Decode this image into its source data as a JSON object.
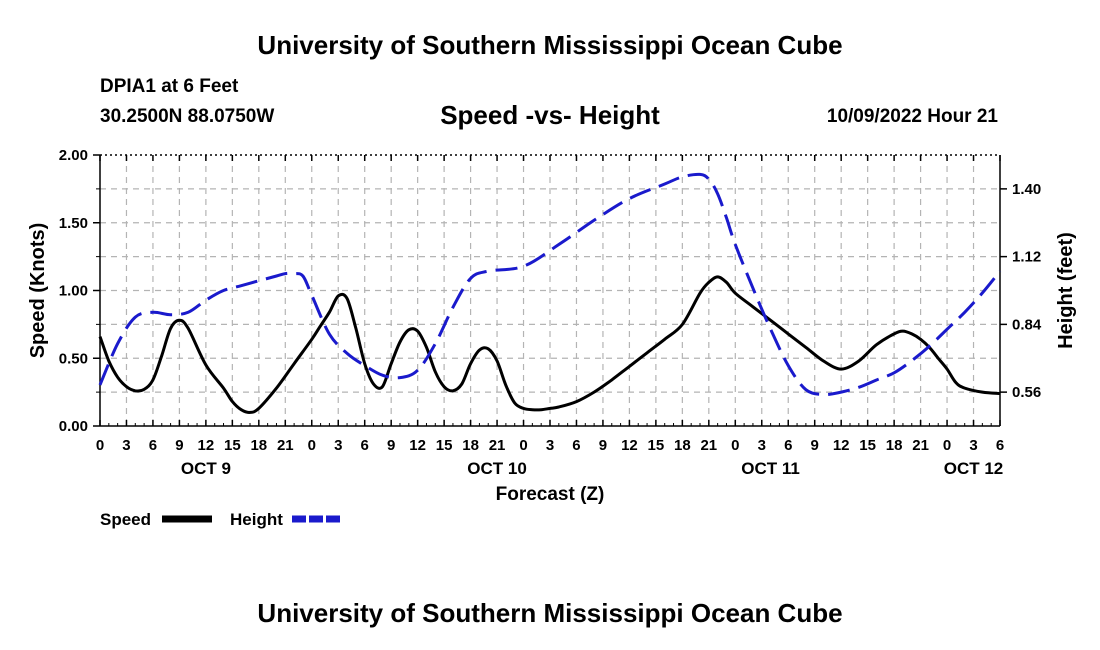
{
  "header": {
    "title": "University of Southern Mississippi Ocean Cube",
    "station": "DPIA1 at 6 Feet",
    "coordinates": "30.2500N  88.0750W",
    "chart_title": "Speed -vs- Height",
    "datetime": "10/09/2022 Hour 21"
  },
  "footer": {
    "title": "University of Southern Mississippi Ocean Cube"
  },
  "colors": {
    "speed": "#000000",
    "height": "#1a1acc",
    "grid": "#b4b4b4"
  },
  "chart_data": {
    "type": "line",
    "title": "Speed -vs- Height",
    "xlabel": "Forecast (Z)",
    "ylabel": "Speed (Knots)",
    "y2label": "Height (feet)",
    "x_range": [
      0,
      102
    ],
    "ylim": [
      0,
      2
    ],
    "y2lim": [
      0.42,
      1.54
    ],
    "yticks": [
      0,
      0.5,
      1.0,
      1.5,
      2.0
    ],
    "ytick_labels": [
      "0.00",
      "0.50",
      "1.00",
      "1.50",
      "2.00"
    ],
    "y2ticks": [
      0.56,
      0.84,
      1.12,
      1.4
    ],
    "y2tick_labels": [
      "0.56",
      "0.84",
      "1.12",
      "1.40"
    ],
    "x_hours": [
      0,
      3,
      6,
      9,
      12,
      15,
      18,
      21,
      24,
      27,
      30,
      33,
      36,
      39,
      42,
      45,
      48,
      51,
      54,
      57,
      60,
      63,
      66,
      69,
      72,
      75,
      78,
      81,
      84,
      87,
      90,
      93,
      96,
      99,
      102
    ],
    "x_tick_labels": [
      "0",
      "3",
      "6",
      "9",
      "12",
      "15",
      "18",
      "21",
      "0",
      "3",
      "6",
      "9",
      "12",
      "15",
      "18",
      "21",
      "0",
      "3",
      "6",
      "9",
      "12",
      "15",
      "18",
      "21",
      "0",
      "3",
      "6",
      "9",
      "12",
      "15",
      "18",
      "21",
      "0",
      "3",
      "6"
    ],
    "date_labels": [
      {
        "label": "OCT 9",
        "hour": 12
      },
      {
        "label": "OCT 10",
        "hour": 45
      },
      {
        "label": "OCT 11",
        "hour": 76
      },
      {
        "label": "OCT 12",
        "hour": 99
      }
    ],
    "grid": true,
    "legend": {
      "position": "bottom-left",
      "entries": [
        "Speed",
        "Height"
      ]
    },
    "series": [
      {
        "name": "Speed",
        "axis": "left",
        "style": "solid",
        "x": [
          0,
          1,
          2,
          3,
          4,
          5,
          6,
          7,
          8,
          9,
          10,
          12,
          14,
          15,
          16,
          17,
          18,
          20,
          22,
          24,
          25,
          26,
          27,
          28,
          29,
          30,
          31,
          32,
          33,
          34,
          35,
          36,
          37,
          38,
          39,
          40,
          41,
          42,
          43,
          44,
          45,
          46,
          47,
          48,
          49,
          50,
          51,
          52,
          54,
          56,
          58,
          60,
          62,
          64,
          66,
          68,
          69,
          70,
          71,
          72,
          74,
          76,
          78,
          80,
          82,
          84,
          86,
          88,
          90,
          91,
          92,
          93,
          94,
          95,
          96,
          97,
          98,
          100,
          102
        ],
        "y": [
          0.66,
          0.48,
          0.36,
          0.29,
          0.26,
          0.27,
          0.34,
          0.52,
          0.72,
          0.78,
          0.72,
          0.45,
          0.28,
          0.18,
          0.12,
          0.1,
          0.13,
          0.28,
          0.46,
          0.64,
          0.74,
          0.84,
          0.96,
          0.94,
          0.72,
          0.46,
          0.31,
          0.29,
          0.46,
          0.62,
          0.71,
          0.7,
          0.58,
          0.4,
          0.29,
          0.26,
          0.31,
          0.46,
          0.56,
          0.57,
          0.48,
          0.3,
          0.17,
          0.13,
          0.12,
          0.12,
          0.13,
          0.14,
          0.18,
          0.25,
          0.34,
          0.44,
          0.54,
          0.64,
          0.75,
          0.98,
          1.06,
          1.1,
          1.06,
          0.98,
          0.88,
          0.78,
          0.68,
          0.58,
          0.48,
          0.42,
          0.48,
          0.6,
          0.68,
          0.7,
          0.68,
          0.64,
          0.58,
          0.5,
          0.42,
          0.32,
          0.28,
          0.25,
          0.24
        ]
      },
      {
        "name": "Height",
        "axis": "right",
        "style": "dashed",
        "x": [
          0,
          2,
          4,
          6,
          8,
          10,
          12,
          14,
          16,
          18,
          20,
          21,
          22,
          23,
          24,
          26,
          28,
          30,
          32,
          34,
          36,
          38,
          40,
          42,
          44,
          48,
          52,
          56,
          60,
          64,
          66,
          68,
          69,
          70,
          71,
          72,
          74,
          76,
          78,
          80,
          82,
          84,
          86,
          88,
          90,
          92,
          94,
          96,
          98,
          100,
          102
        ],
        "y": [
          0.59,
          0.76,
          0.87,
          0.89,
          0.88,
          0.89,
          0.94,
          0.98,
          1.0,
          1.02,
          1.04,
          1.05,
          1.05,
          1.04,
          0.96,
          0.8,
          0.72,
          0.67,
          0.63,
          0.62,
          0.65,
          0.76,
          0.91,
          1.03,
          1.06,
          1.08,
          1.17,
          1.27,
          1.36,
          1.42,
          1.45,
          1.46,
          1.44,
          1.38,
          1.28,
          1.17,
          0.99,
          0.82,
          0.67,
          0.57,
          0.55,
          0.56,
          0.58,
          0.61,
          0.64,
          0.69,
          0.75,
          0.82,
          0.89,
          0.97,
          1.06
        ]
      }
    ]
  }
}
